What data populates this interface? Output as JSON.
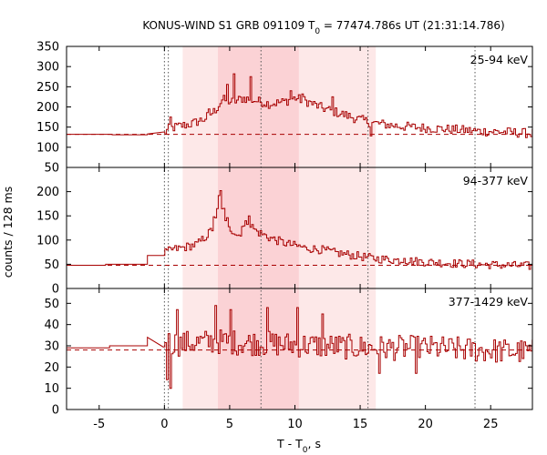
{
  "chart_data": {
    "type": "line",
    "title_main": "KONUS-WIND S1 GRB 091109 T",
    "title_sub": "0",
    "title_rest": " = 77474.786s UT (21:31:14.786)",
    "xlabel_main": "T - T",
    "xlabel_sub": "0",
    "xlabel_rest": ", s",
    "ylabel": "counts / 128 ms",
    "xlim": [
      -7.5,
      28.2
    ],
    "xticks": [
      {
        "v": -5,
        "label": "-5"
      },
      {
        "v": 0,
        "label": "0"
      },
      {
        "v": 5,
        "label": "5"
      },
      {
        "v": 10,
        "label": "10"
      },
      {
        "v": 15,
        "label": "15"
      },
      {
        "v": 20,
        "label": "20"
      },
      {
        "v": 25,
        "label": "25"
      }
    ],
    "colors": {
      "line": "#a80000",
      "band_light": "#fde8e8",
      "band_dark": "#fbd2d5",
      "vline": "#555555",
      "background_dash": "#a80000"
    },
    "shaded_intervals": [
      {
        "x0": 1.4,
        "x1": 16.2,
        "level": "light"
      },
      {
        "x0": 4.1,
        "x1": 10.3,
        "level": "dark"
      }
    ],
    "vertical_dotted_lines": [
      0.0,
      0.3,
      7.4,
      15.6,
      23.8
    ],
    "panels": [
      {
        "label": "25-94 keV",
        "ylim": [
          50,
          350
        ],
        "yticks": [
          {
            "v": 350,
            "label": "350"
          },
          {
            "v": 300,
            "label": "300"
          },
          {
            "v": 250,
            "label": "250"
          },
          {
            "v": 200,
            "label": "200"
          },
          {
            "v": 150,
            "label": "150"
          },
          {
            "v": 100,
            "label": "100"
          },
          {
            "v": 50,
            "label": "50"
          }
        ],
        "background_level": 132,
        "pre_trigger": [
          [
            -7.5,
            132
          ],
          [
            -4.0,
            132
          ],
          [
            -4.0,
            131
          ],
          [
            -1.3,
            131
          ],
          [
            -1.3,
            133
          ]
        ],
        "anchors": [
          [
            -0.1,
            134
          ],
          [
            0.3,
            145
          ],
          [
            1.0,
            152
          ],
          [
            2.0,
            158
          ],
          [
            3.0,
            170
          ],
          [
            3.8,
            190
          ],
          [
            4.4,
            218
          ],
          [
            5.2,
            212
          ],
          [
            6.0,
            222
          ],
          [
            7.0,
            215
          ],
          [
            8.0,
            208
          ],
          [
            9.0,
            212
          ],
          [
            10.0,
            222
          ],
          [
            11.0,
            212
          ],
          [
            12.0,
            198
          ],
          [
            13.0,
            188
          ],
          [
            14.0,
            178
          ],
          [
            15.0,
            168
          ],
          [
            16.0,
            160
          ],
          [
            18.0,
            152
          ],
          [
            20.0,
            148
          ],
          [
            22.0,
            144
          ],
          [
            24.0,
            140
          ],
          [
            26.0,
            138
          ],
          [
            28.2,
            134
          ]
        ],
        "spikes": [
          [
            5.3,
            282
          ],
          [
            6.5,
            275
          ],
          [
            4.8,
            256
          ],
          [
            9.6,
            240
          ],
          [
            10.5,
            232
          ],
          [
            3.3,
            195
          ],
          [
            0.4,
            175
          ],
          [
            15.8,
            128
          ],
          [
            12.8,
            225
          ]
        ],
        "noise": 12
      },
      {
        "label": "94-377 keV",
        "ylim": [
          0,
          250
        ],
        "yticks": [
          {
            "v": 200,
            "label": "200"
          },
          {
            "v": 150,
            "label": "150"
          },
          {
            "v": 100,
            "label": "100"
          },
          {
            "v": 50,
            "label": "50"
          },
          {
            "v": 0,
            "label": "0"
          }
        ],
        "background_level": 48,
        "pre_trigger": [
          [
            -7.5,
            48
          ],
          [
            -4.5,
            48
          ],
          [
            -4.5,
            50
          ],
          [
            -1.3,
            50
          ],
          [
            -1.3,
            68
          ]
        ],
        "anchors": [
          [
            -0.1,
            72
          ],
          [
            0.5,
            80
          ],
          [
            1.5,
            85
          ],
          [
            2.5,
            92
          ],
          [
            3.3,
            112
          ],
          [
            3.8,
            130
          ],
          [
            4.2,
            185
          ],
          [
            4.5,
            160
          ],
          [
            5.0,
            125
          ],
          [
            5.6,
            108
          ],
          [
            6.3,
            138
          ],
          [
            7.0,
            118
          ],
          [
            8.0,
            105
          ],
          [
            9.0,
            95
          ],
          [
            10.0,
            88
          ],
          [
            11.0,
            83
          ],
          [
            12.0,
            80
          ],
          [
            13.0,
            74
          ],
          [
            14.0,
            70
          ],
          [
            15.0,
            66
          ],
          [
            16.0,
            62
          ],
          [
            18.0,
            58
          ],
          [
            20.0,
            55
          ],
          [
            22.0,
            52
          ],
          [
            24.0,
            50
          ],
          [
            26.0,
            48
          ],
          [
            28.2,
            46
          ]
        ],
        "spikes": [
          [
            4.3,
            202
          ],
          [
            4.1,
            192
          ],
          [
            4.0,
            165
          ],
          [
            3.7,
            148
          ],
          [
            4.6,
            140
          ],
          [
            6.4,
            150
          ],
          [
            5.9,
            128
          ],
          [
            10.8,
            85
          ],
          [
            18.3,
            62
          ]
        ],
        "noise": 9
      },
      {
        "label": "377-1429 keV",
        "ylim": [
          0,
          57
        ],
        "yticks": [
          {
            "v": 50,
            "label": "50"
          },
          {
            "v": 40,
            "label": "40"
          },
          {
            "v": 30,
            "label": "30"
          },
          {
            "v": 20,
            "label": "20"
          },
          {
            "v": 10,
            "label": "10"
          },
          {
            "v": 0,
            "label": "0"
          }
        ],
        "background_level": 28,
        "pre_trigger": [
          [
            -7.5,
            29
          ],
          [
            -4.2,
            29
          ],
          [
            -4.2,
            30
          ],
          [
            -1.3,
            30
          ],
          [
            -1.3,
            34
          ]
        ],
        "anchors": [
          [
            -0.1,
            32
          ],
          [
            1.0,
            31
          ],
          [
            4.0,
            32
          ],
          [
            8.0,
            31
          ],
          [
            12.0,
            30
          ],
          [
            16.0,
            29
          ],
          [
            20.0,
            29
          ],
          [
            24.0,
            28
          ],
          [
            28.2,
            27
          ]
        ],
        "spikes": [
          [
            0.4,
            10
          ],
          [
            0.9,
            47
          ],
          [
            3.9,
            49
          ],
          [
            5.0,
            47
          ],
          [
            7.9,
            48
          ],
          [
            10.1,
            48
          ],
          [
            0.2,
            14
          ],
          [
            16.4,
            17
          ],
          [
            19.2,
            17
          ],
          [
            12.0,
            45
          ]
        ],
        "noise": 6
      }
    ],
    "bin_width": 0.128
  }
}
